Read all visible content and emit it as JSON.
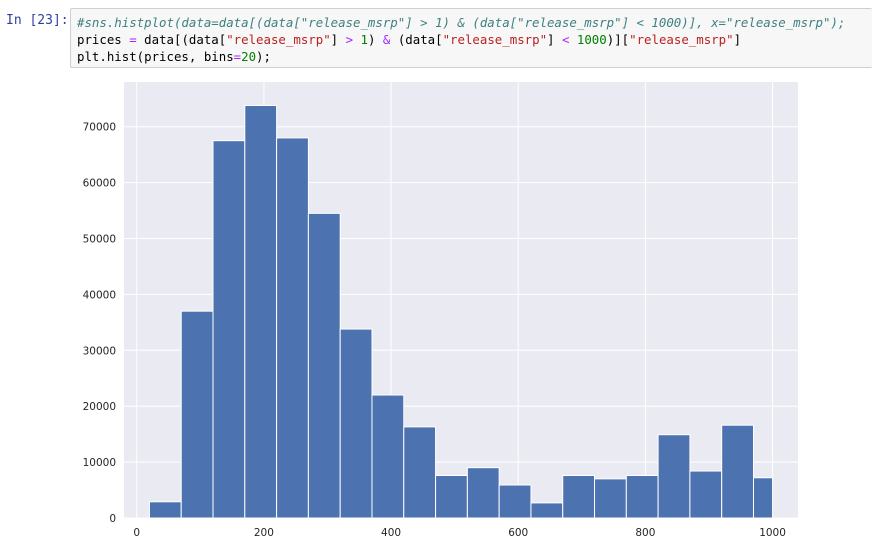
{
  "cell": {
    "prompt": "In [23]:",
    "code_lines": [
      [
        {
          "cls": "c-comment",
          "text": "#sns.histplot(data=data[(data[\"release_msrp\"] > 1) & (data[\"release_msrp\"] < 1000)], x=\"release_msrp\");"
        }
      ],
      [
        {
          "cls": "c-plain",
          "text": "prices "
        },
        {
          "cls": "c-op",
          "text": "="
        },
        {
          "cls": "c-plain",
          "text": " data[(data["
        },
        {
          "cls": "c-str",
          "text": "\"release_msrp\""
        },
        {
          "cls": "c-plain",
          "text": "] "
        },
        {
          "cls": "c-op",
          "text": ">"
        },
        {
          "cls": "c-plain",
          "text": " "
        },
        {
          "cls": "c-num",
          "text": "1"
        },
        {
          "cls": "c-plain",
          "text": ") "
        },
        {
          "cls": "c-op",
          "text": "&"
        },
        {
          "cls": "c-plain",
          "text": " (data["
        },
        {
          "cls": "c-str",
          "text": "\"release_msrp\""
        },
        {
          "cls": "c-plain",
          "text": "] "
        },
        {
          "cls": "c-op",
          "text": "<"
        },
        {
          "cls": "c-plain",
          "text": " "
        },
        {
          "cls": "c-num",
          "text": "1000"
        },
        {
          "cls": "c-plain",
          "text": ")]["
        },
        {
          "cls": "c-str",
          "text": "\"release_msrp\""
        },
        {
          "cls": "c-plain",
          "text": "]"
        }
      ],
      [
        {
          "cls": "c-plain",
          "text": "plt.hist(prices, bins"
        },
        {
          "cls": "c-op",
          "text": "="
        },
        {
          "cls": "c-num",
          "text": "20"
        },
        {
          "cls": "c-plain",
          "text": ");"
        }
      ]
    ]
  },
  "chart_data": {
    "type": "bar",
    "title": "",
    "xlabel": "",
    "ylabel": "",
    "bin_edges": [
      20,
      70,
      120,
      170,
      220,
      270,
      320,
      370,
      420,
      470,
      520,
      570,
      620,
      670,
      720,
      770,
      820,
      870,
      920,
      970,
      1000
    ],
    "values": [
      2900,
      37000,
      67500,
      73800,
      68000,
      54500,
      33800,
      22000,
      16300,
      7600,
      9000,
      5900,
      2700,
      7600,
      7000,
      7600,
      14900,
      8400,
      16600,
      7200
    ],
    "xlim": [
      -20,
      1040
    ],
    "ylim": [
      0,
      78000
    ],
    "x_ticks": [
      0,
      200,
      400,
      600,
      800,
      1000
    ],
    "x_tick_labels": [
      "0",
      "200",
      "400",
      "600",
      "800",
      "1000"
    ],
    "y_ticks": [
      0,
      10000,
      20000,
      30000,
      40000,
      50000,
      60000,
      70000
    ],
    "y_tick_labels": [
      "0",
      "10000",
      "20000",
      "30000",
      "40000",
      "50000",
      "60000",
      "70000"
    ],
    "grid": true,
    "colors": {
      "bar": "#4c72b0",
      "bar_edge": "#ffffff",
      "background": "#eaeaf2",
      "grid": "#ffffff",
      "tick_label": "#262626"
    }
  }
}
